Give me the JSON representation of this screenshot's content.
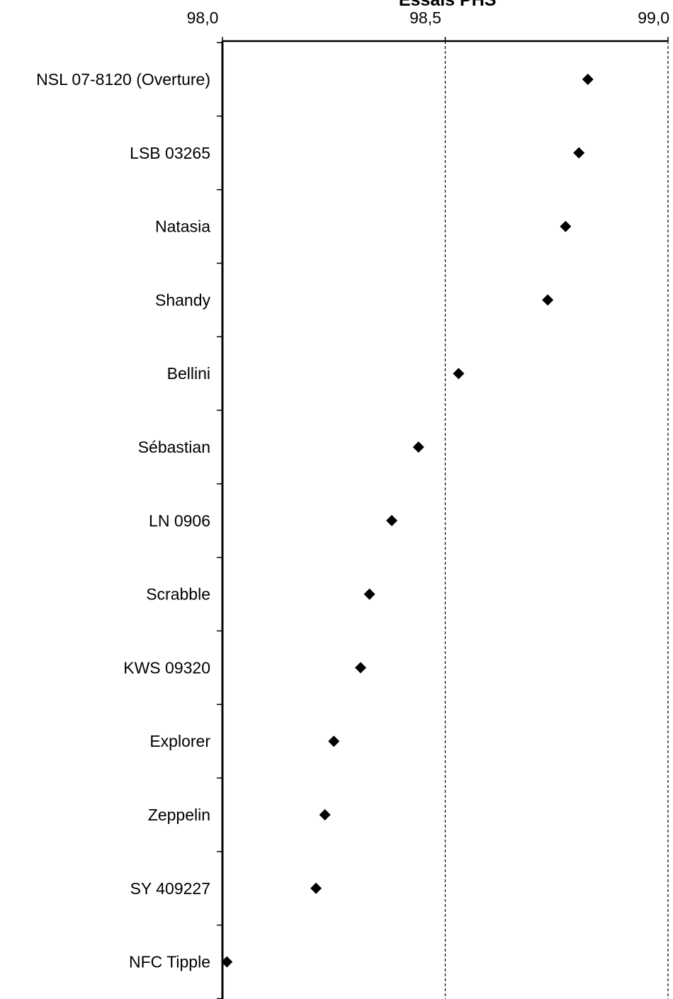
{
  "chart_data": {
    "type": "scatter",
    "title": "Essais PHS",
    "xlim": [
      98.0,
      99.0
    ],
    "x_ticks": [
      {
        "value": 98.0,
        "label": "98,0"
      },
      {
        "value": 98.5,
        "label": "98,5"
      },
      {
        "value": 99.0,
        "label": "99,0"
      }
    ],
    "gridlines": [
      98.5,
      99.0
    ],
    "marker": "diamond",
    "marker_color": "#000000",
    "categories": [
      "NSL 07-8120 (Overture)",
      "LSB 03265",
      "Natasia",
      "Shandy",
      "Bellini",
      "Sébastian",
      "LN 0906",
      "Scrabble",
      "KWS 09320",
      "Explorer",
      "Zeppelin",
      "SY 409227",
      "NFC Tipple"
    ],
    "values": [
      98.82,
      98.8,
      98.77,
      98.73,
      98.53,
      98.44,
      98.38,
      98.33,
      98.31,
      98.25,
      98.23,
      98.21,
      98.01
    ]
  }
}
